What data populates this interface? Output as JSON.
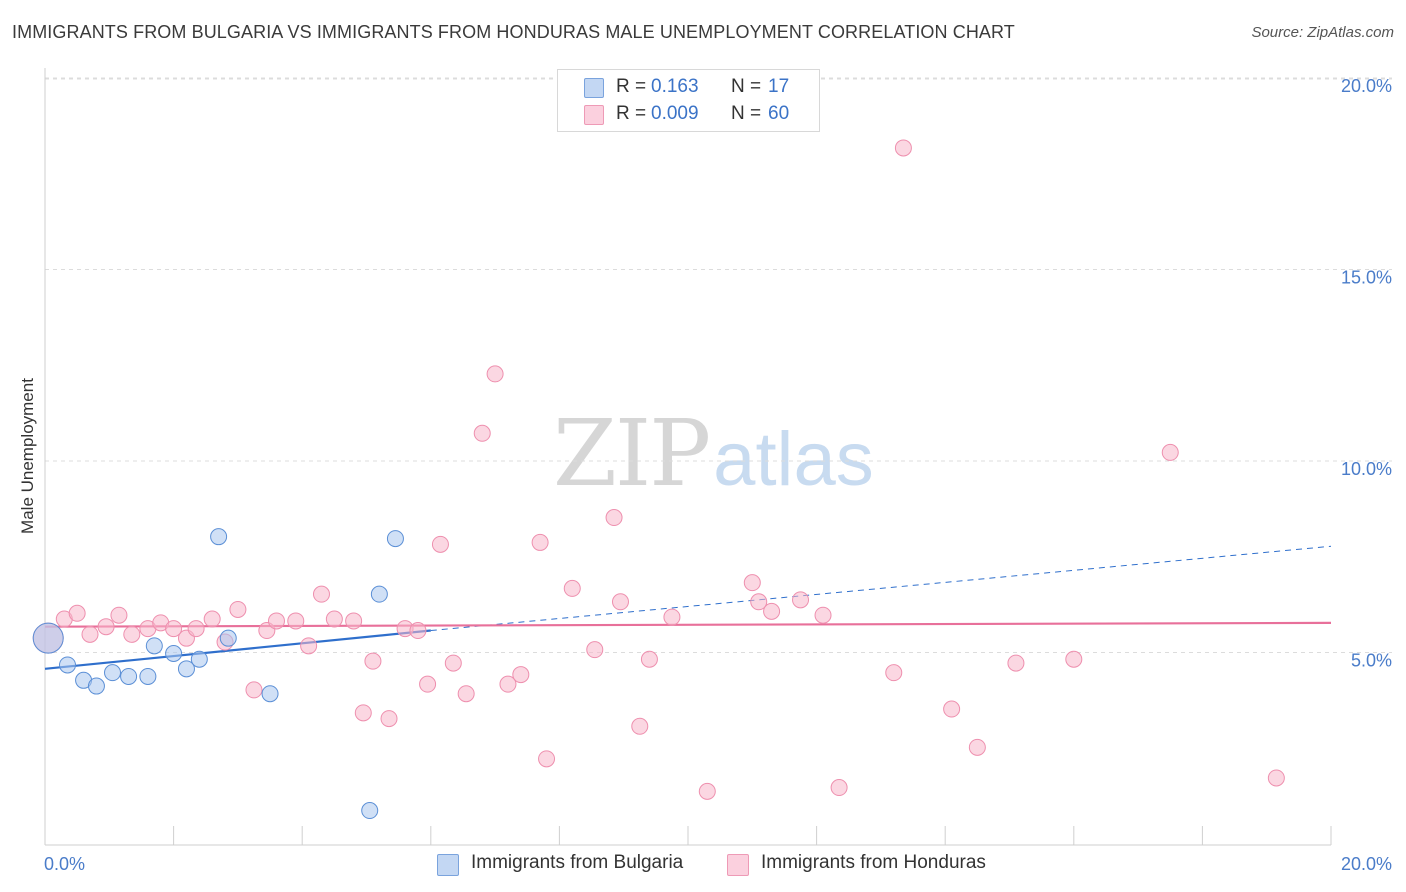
{
  "chart_data": {
    "type": "scatter",
    "title": "IMMIGRANTS FROM BULGARIA VS IMMIGRANTS FROM HONDURAS MALE UNEMPLOYMENT CORRELATION CHART",
    "source": "Source: ZipAtlas.com",
    "ylabel": "Male Unemployment",
    "xlabel": "",
    "xlim": [
      0,
      20
    ],
    "ylim": [
      0,
      20
    ],
    "x_tick_labels": [
      "0.0%",
      "20.0%"
    ],
    "y_ticks": [
      {
        "value": 5,
        "label": "5.0%"
      },
      {
        "value": 10,
        "label": "10.0%"
      },
      {
        "value": 15,
        "label": "15.0%"
      },
      {
        "value": 20,
        "label": "20.0%"
      }
    ],
    "legend": {
      "rows": [
        {
          "r_label": "R =",
          "r_value": "0.163",
          "n_label": "N =",
          "n_value": "17",
          "color": "#a9c6ee"
        },
        {
          "r_label": "R =",
          "r_value": "0.009",
          "n_label": "N =",
          "n_value": "60",
          "color": "#f7b6cb"
        }
      ]
    },
    "series": [
      {
        "name": "Immigrants from Bulgaria",
        "color": "#a9c6ee",
        "stroke": "#5b8fd6",
        "trend": {
          "x0": 0,
          "y0": 4.6,
          "x1": 6,
          "y1": 5.6,
          "dash_to_x": 20,
          "dash_to_y": 7.8,
          "color": "#2f6fcc"
        },
        "points": [
          {
            "x": 0.35,
            "y": 4.7
          },
          {
            "x": 0.6,
            "y": 4.3
          },
          {
            "x": 0.8,
            "y": 4.15
          },
          {
            "x": 1.05,
            "y": 4.5
          },
          {
            "x": 1.3,
            "y": 4.4
          },
          {
            "x": 1.6,
            "y": 4.4
          },
          {
            "x": 1.7,
            "y": 5.2
          },
          {
            "x": 2.0,
            "y": 5.0
          },
          {
            "x": 2.2,
            "y": 4.6
          },
          {
            "x": 2.4,
            "y": 4.85
          },
          {
            "x": 2.7,
            "y": 8.05
          },
          {
            "x": 2.85,
            "y": 5.4
          },
          {
            "x": 3.5,
            "y": 3.95
          },
          {
            "x": 5.05,
            "y": 0.9
          },
          {
            "x": 5.2,
            "y": 6.55
          },
          {
            "x": 5.45,
            "y": 8.0
          },
          {
            "x": 0.05,
            "y": 5.4
          }
        ]
      },
      {
        "name": "Immigrants from Honduras",
        "color": "#f7b6cb",
        "stroke": "#ee8fae",
        "trend": {
          "x0": 0,
          "y0": 5.7,
          "x1": 20,
          "y1": 5.8,
          "color": "#e8709a"
        },
        "points": [
          {
            "x": 0.05,
            "y": 5.4
          },
          {
            "x": 0.3,
            "y": 5.9
          },
          {
            "x": 0.5,
            "y": 6.05
          },
          {
            "x": 0.7,
            "y": 5.5
          },
          {
            "x": 0.95,
            "y": 5.7
          },
          {
            "x": 1.15,
            "y": 6.0
          },
          {
            "x": 1.35,
            "y": 5.5
          },
          {
            "x": 1.6,
            "y": 5.65
          },
          {
            "x": 1.8,
            "y": 5.8
          },
          {
            "x": 2.0,
            "y": 5.65
          },
          {
            "x": 2.2,
            "y": 5.4
          },
          {
            "x": 2.35,
            "y": 5.65
          },
          {
            "x": 2.6,
            "y": 5.9
          },
          {
            "x": 2.8,
            "y": 5.3
          },
          {
            "x": 3.0,
            "y": 6.15
          },
          {
            "x": 3.25,
            "y": 4.05
          },
          {
            "x": 3.45,
            "y": 5.6
          },
          {
            "x": 3.6,
            "y": 5.85
          },
          {
            "x": 3.9,
            "y": 5.85
          },
          {
            "x": 4.1,
            "y": 5.2
          },
          {
            "x": 4.3,
            "y": 6.55
          },
          {
            "x": 4.5,
            "y": 5.9
          },
          {
            "x": 4.8,
            "y": 5.85
          },
          {
            "x": 4.95,
            "y": 3.45
          },
          {
            "x": 5.1,
            "y": 4.8
          },
          {
            "x": 5.35,
            "y": 3.3
          },
          {
            "x": 5.6,
            "y": 5.65
          },
          {
            "x": 5.8,
            "y": 5.6
          },
          {
            "x": 5.95,
            "y": 4.2
          },
          {
            "x": 6.15,
            "y": 7.85
          },
          {
            "x": 6.35,
            "y": 4.75
          },
          {
            "x": 6.55,
            "y": 3.95
          },
          {
            "x": 6.8,
            "y": 10.75
          },
          {
            "x": 7.0,
            "y": 12.3
          },
          {
            "x": 7.2,
            "y": 4.2
          },
          {
            "x": 7.4,
            "y": 4.45
          },
          {
            "x": 7.7,
            "y": 7.9
          },
          {
            "x": 7.8,
            "y": 2.25
          },
          {
            "x": 8.2,
            "y": 6.7
          },
          {
            "x": 8.55,
            "y": 5.1
          },
          {
            "x": 8.85,
            "y": 8.55
          },
          {
            "x": 8.95,
            "y": 6.35
          },
          {
            "x": 9.25,
            "y": 3.1
          },
          {
            "x": 9.4,
            "y": 4.85
          },
          {
            "x": 9.75,
            "y": 5.95
          },
          {
            "x": 10.3,
            "y": 1.4
          },
          {
            "x": 11.0,
            "y": 6.85
          },
          {
            "x": 11.1,
            "y": 6.35
          },
          {
            "x": 11.3,
            "y": 6.1
          },
          {
            "x": 11.75,
            "y": 6.4
          },
          {
            "x": 12.1,
            "y": 6.0
          },
          {
            "x": 12.35,
            "y": 1.5
          },
          {
            "x": 13.2,
            "y": 4.5
          },
          {
            "x": 13.35,
            "y": 18.2
          },
          {
            "x": 14.1,
            "y": 3.55
          },
          {
            "x": 14.5,
            "y": 2.55
          },
          {
            "x": 15.1,
            "y": 4.75
          },
          {
            "x": 16.0,
            "y": 4.85
          },
          {
            "x": 17.5,
            "y": 10.25
          },
          {
            "x": 19.15,
            "y": 1.75
          }
        ]
      }
    ]
  }
}
